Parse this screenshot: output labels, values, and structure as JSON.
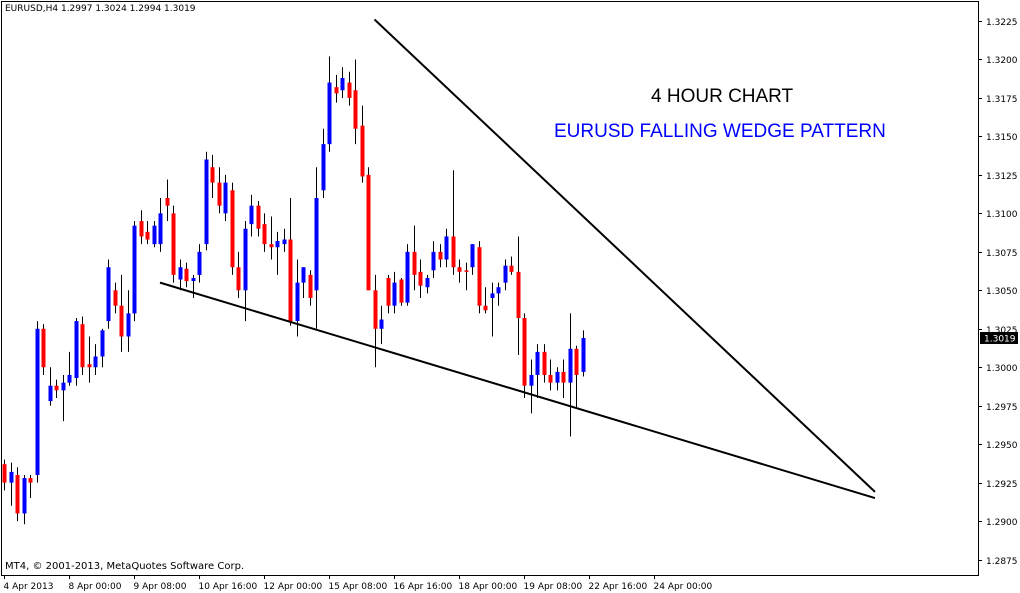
{
  "header": {
    "info": "EURUSD,H4  1.2997 1.3024 1.2994 1.3019"
  },
  "footer": {
    "copyright": "MT4, © 2001-2013, MetaQuotes Software Corp."
  },
  "colors": {
    "bull": "#0000ff",
    "bear": "#ff0000",
    "wick": "#000000",
    "background": "#ffffff",
    "price_box": "#000000",
    "trendline": "#000000"
  },
  "chart_data": {
    "type": "candlestick",
    "symbol": "EURUSD",
    "timeframe": "H4",
    "title": "4 HOUR CHART",
    "subtitle": "EURUSD FALLING WEDGE PATTERN",
    "last_price": "1.3019",
    "ylim": [
      1.2865,
      1.3238
    ],
    "y_ticks": [
      "1.3225",
      "1.3200",
      "1.3175",
      "1.3150",
      "1.3125",
      "1.3100",
      "1.3075",
      "1.3050",
      "1.3025",
      "1.3000",
      "1.2975",
      "1.2950",
      "1.2925",
      "1.2900",
      "1.2875"
    ],
    "x_ticks": [
      {
        "label": "4 Apr 2013",
        "index": 0
      },
      {
        "label": "8 Apr 00:00",
        "index": 10
      },
      {
        "label": "9 Apr 08:00",
        "index": 20
      },
      {
        "label": "10 Apr 16:00",
        "index": 30
      },
      {
        "label": "12 Apr 00:00",
        "index": 40
      },
      {
        "label": "15 Apr 08:00",
        "index": 50
      },
      {
        "label": "16 Apr 16:00",
        "index": 60
      },
      {
        "label": "18 Apr 00:00",
        "index": 70
      },
      {
        "label": "19 Apr 08:00",
        "index": 80
      },
      {
        "label": "22 Apr 16:00",
        "index": 90
      },
      {
        "label": "24 Apr 00:00",
        "index": 100
      }
    ],
    "trendlines": [
      {
        "name": "upper",
        "from": {
          "index": 57,
          "price": 1.3226
        },
        "to": {
          "index": 134,
          "price": 1.2919
        }
      },
      {
        "name": "lower",
        "from": {
          "index": 24,
          "price": 1.3055
        },
        "to": {
          "index": 134,
          "price": 1.2915
        }
      }
    ],
    "candles": [
      {
        "o": 1.2937,
        "h": 1.294,
        "l": 1.292,
        "c": 1.2925
      },
      {
        "o": 1.2925,
        "h": 1.2938,
        "l": 1.291,
        "c": 1.2932
      },
      {
        "o": 1.293,
        "h": 1.2935,
        "l": 1.29,
        "c": 1.2905
      },
      {
        "o": 1.2905,
        "h": 1.293,
        "l": 1.2898,
        "c": 1.2928
      },
      {
        "o": 1.2928,
        "h": 1.293,
        "l": 1.2915,
        "c": 1.2925
      },
      {
        "o": 1.293,
        "h": 1.303,
        "l": 1.2925,
        "c": 1.3025
      },
      {
        "o": 1.3025,
        "h": 1.3028,
        "l": 1.2995,
        "c": 1.3
      },
      {
        "o": 1.2978,
        "h": 1.3,
        "l": 1.2975,
        "c": 1.2988
      },
      {
        "o": 1.2988,
        "h": 1.2992,
        "l": 1.298,
        "c": 1.2985
      },
      {
        "o": 1.2985,
        "h": 1.2995,
        "l": 1.2965,
        "c": 1.299
      },
      {
        "o": 1.299,
        "h": 1.301,
        "l": 1.2988,
        "c": 1.2995
      },
      {
        "o": 1.2993,
        "h": 1.3032,
        "l": 1.2988,
        "c": 1.303
      },
      {
        "o": 1.3028,
        "h": 1.3033,
        "l": 1.2995,
        "c": 1.3
      },
      {
        "o": 1.3002,
        "h": 1.302,
        "l": 1.299,
        "c": 1.3
      },
      {
        "o": 1.3,
        "h": 1.3015,
        "l": 1.2995,
        "c": 1.3007
      },
      {
        "o": 1.3007,
        "h": 1.3025,
        "l": 1.3,
        "c": 1.3024
      },
      {
        "o": 1.303,
        "h": 1.307,
        "l": 1.3025,
        "c": 1.3065
      },
      {
        "o": 1.305,
        "h": 1.3055,
        "l": 1.3035,
        "c": 1.304
      },
      {
        "o": 1.304,
        "h": 1.306,
        "l": 1.301,
        "c": 1.302
      },
      {
        "o": 1.302,
        "h": 1.305,
        "l": 1.301,
        "c": 1.3035
      },
      {
        "o": 1.3035,
        "h": 1.3095,
        "l": 1.303,
        "c": 1.3092
      },
      {
        "o": 1.3095,
        "h": 1.3102,
        "l": 1.308,
        "c": 1.3085
      },
      {
        "o": 1.3088,
        "h": 1.3095,
        "l": 1.308,
        "c": 1.3083
      },
      {
        "o": 1.308,
        "h": 1.3095,
        "l": 1.3078,
        "c": 1.3092
      },
      {
        "o": 1.308,
        "h": 1.311,
        "l": 1.3075,
        "c": 1.31
      },
      {
        "o": 1.311,
        "h": 1.3122,
        "l": 1.3095,
        "c": 1.3105
      },
      {
        "o": 1.31,
        "h": 1.3105,
        "l": 1.3055,
        "c": 1.306
      },
      {
        "o": 1.3057,
        "h": 1.307,
        "l": 1.305,
        "c": 1.3065
      },
      {
        "o": 1.3064,
        "h": 1.3068,
        "l": 1.3052,
        "c": 1.3056
      },
      {
        "o": 1.3056,
        "h": 1.306,
        "l": 1.3045,
        "c": 1.3058
      },
      {
        "o": 1.306,
        "h": 1.308,
        "l": 1.3055,
        "c": 1.3075
      },
      {
        "o": 1.308,
        "h": 1.314,
        "l": 1.3076,
        "c": 1.3135
      },
      {
        "o": 1.313,
        "h": 1.3138,
        "l": 1.311,
        "c": 1.312
      },
      {
        "o": 1.312,
        "h": 1.313,
        "l": 1.31,
        "c": 1.3105
      },
      {
        "o": 1.31,
        "h": 1.3125,
        "l": 1.3095,
        "c": 1.312
      },
      {
        "o": 1.3115,
        "h": 1.312,
        "l": 1.306,
        "c": 1.3065
      },
      {
        "o": 1.3065,
        "h": 1.3075,
        "l": 1.3045,
        "c": 1.305
      },
      {
        "o": 1.305,
        "h": 1.3095,
        "l": 1.303,
        "c": 1.309
      },
      {
        "o": 1.3093,
        "h": 1.3112,
        "l": 1.3085,
        "c": 1.3105
      },
      {
        "o": 1.3105,
        "h": 1.3108,
        "l": 1.3085,
        "c": 1.309
      },
      {
        "o": 1.3093,
        "h": 1.31,
        "l": 1.3075,
        "c": 1.308
      },
      {
        "o": 1.308,
        "h": 1.3098,
        "l": 1.307,
        "c": 1.3078
      },
      {
        "o": 1.3078,
        "h": 1.3088,
        "l": 1.306,
        "c": 1.3082
      },
      {
        "o": 1.308,
        "h": 1.309,
        "l": 1.3075,
        "c": 1.3083
      },
      {
        "o": 1.3083,
        "h": 1.311,
        "l": 1.3027,
        "c": 1.303
      },
      {
        "o": 1.303,
        "h": 1.307,
        "l": 1.302,
        "c": 1.3055
      },
      {
        "o": 1.3055,
        "h": 1.3065,
        "l": 1.3045,
        "c": 1.3065
      },
      {
        "o": 1.306,
        "h": 1.3063,
        "l": 1.304,
        "c": 1.3045
      },
      {
        "o": 1.305,
        "h": 1.313,
        "l": 1.3025,
        "c": 1.311
      },
      {
        "o": 1.3115,
        "h": 1.3155,
        "l": 1.311,
        "c": 1.3145
      },
      {
        "o": 1.3145,
        "h": 1.3202,
        "l": 1.314,
        "c": 1.3185
      },
      {
        "o": 1.3182,
        "h": 1.319,
        "l": 1.3172,
        "c": 1.3178
      },
      {
        "o": 1.318,
        "h": 1.3195,
        "l": 1.3175,
        "c": 1.3188
      },
      {
        "o": 1.3185,
        "h": 1.3192,
        "l": 1.317,
        "c": 1.3175
      },
      {
        "o": 1.318,
        "h": 1.32,
        "l": 1.3145,
        "c": 1.3155
      },
      {
        "o": 1.3157,
        "h": 1.317,
        "l": 1.312,
        "c": 1.3124
      },
      {
        "o": 1.3125,
        "h": 1.313,
        "l": 1.305,
        "c": 1.305
      },
      {
        "o": 1.305,
        "h": 1.306,
        "l": 1.3,
        "c": 1.3025
      },
      {
        "o": 1.3025,
        "h": 1.304,
        "l": 1.3015,
        "c": 1.3031
      },
      {
        "o": 1.3058,
        "h": 1.306,
        "l": 1.3035,
        "c": 1.304
      },
      {
        "o": 1.304,
        "h": 1.3062,
        "l": 1.3035,
        "c": 1.3055
      },
      {
        "o": 1.3057,
        "h": 1.3058,
        "l": 1.304,
        "c": 1.3042
      },
      {
        "o": 1.3042,
        "h": 1.308,
        "l": 1.304,
        "c": 1.3075
      },
      {
        "o": 1.3075,
        "h": 1.3092,
        "l": 1.305,
        "c": 1.306
      },
      {
        "o": 1.3062,
        "h": 1.307,
        "l": 1.3045,
        "c": 1.3053
      },
      {
        "o": 1.3052,
        "h": 1.306,
        "l": 1.3048,
        "c": 1.3058
      },
      {
        "o": 1.3063,
        "h": 1.3082,
        "l": 1.3058,
        "c": 1.3075
      },
      {
        "o": 1.3075,
        "h": 1.308,
        "l": 1.3065,
        "c": 1.307
      },
      {
        "o": 1.307,
        "h": 1.309,
        "l": 1.3065,
        "c": 1.3085
      },
      {
        "o": 1.3085,
        "h": 1.3128,
        "l": 1.306,
        "c": 1.3065
      },
      {
        "o": 1.3065,
        "h": 1.307,
        "l": 1.3055,
        "c": 1.3062
      },
      {
        "o": 1.3063,
        "h": 1.3068,
        "l": 1.305,
        "c": 1.3062
      },
      {
        "o": 1.3065,
        "h": 1.308,
        "l": 1.306,
        "c": 1.308
      },
      {
        "o": 1.3078,
        "h": 1.3082,
        "l": 1.3035,
        "c": 1.304
      },
      {
        "o": 1.304,
        "h": 1.3052,
        "l": 1.3035,
        "c": 1.3037
      },
      {
        "o": 1.3045,
        "h": 1.3055,
        "l": 1.302,
        "c": 1.3048
      },
      {
        "o": 1.3048,
        "h": 1.3055,
        "l": 1.304,
        "c": 1.3052
      },
      {
        "o": 1.3055,
        "h": 1.307,
        "l": 1.305,
        "c": 1.3066
      },
      {
        "o": 1.3066,
        "h": 1.3072,
        "l": 1.306,
        "c": 1.3062
      },
      {
        "o": 1.3062,
        "h": 1.3085,
        "l": 1.3008,
        "c": 1.3032
      },
      {
        "o": 1.3032,
        "h": 1.3035,
        "l": 1.298,
        "c": 1.2988
      },
      {
        "o": 1.2988,
        "h": 1.3005,
        "l": 1.297,
        "c": 1.2995
      },
      {
        "o": 1.2995,
        "h": 1.3015,
        "l": 1.298,
        "c": 1.301
      },
      {
        "o": 1.301,
        "h": 1.3015,
        "l": 1.299,
        "c": 1.2995
      },
      {
        "o": 1.2995,
        "h": 1.3005,
        "l": 1.2985,
        "c": 1.299
      },
      {
        "o": 1.299,
        "h": 1.3,
        "l": 1.2985,
        "c": 1.2997
      },
      {
        "o": 1.2997,
        "h": 1.3005,
        "l": 1.298,
        "c": 1.299
      },
      {
        "o": 1.299,
        "h": 1.3035,
        "l": 1.2955,
        "c": 1.3012
      },
      {
        "o": 1.3012,
        "h": 1.3014,
        "l": 1.2974,
        "c": 1.2995
      },
      {
        "o": 1.2997,
        "h": 1.3024,
        "l": 1.2994,
        "c": 1.3019
      }
    ]
  }
}
